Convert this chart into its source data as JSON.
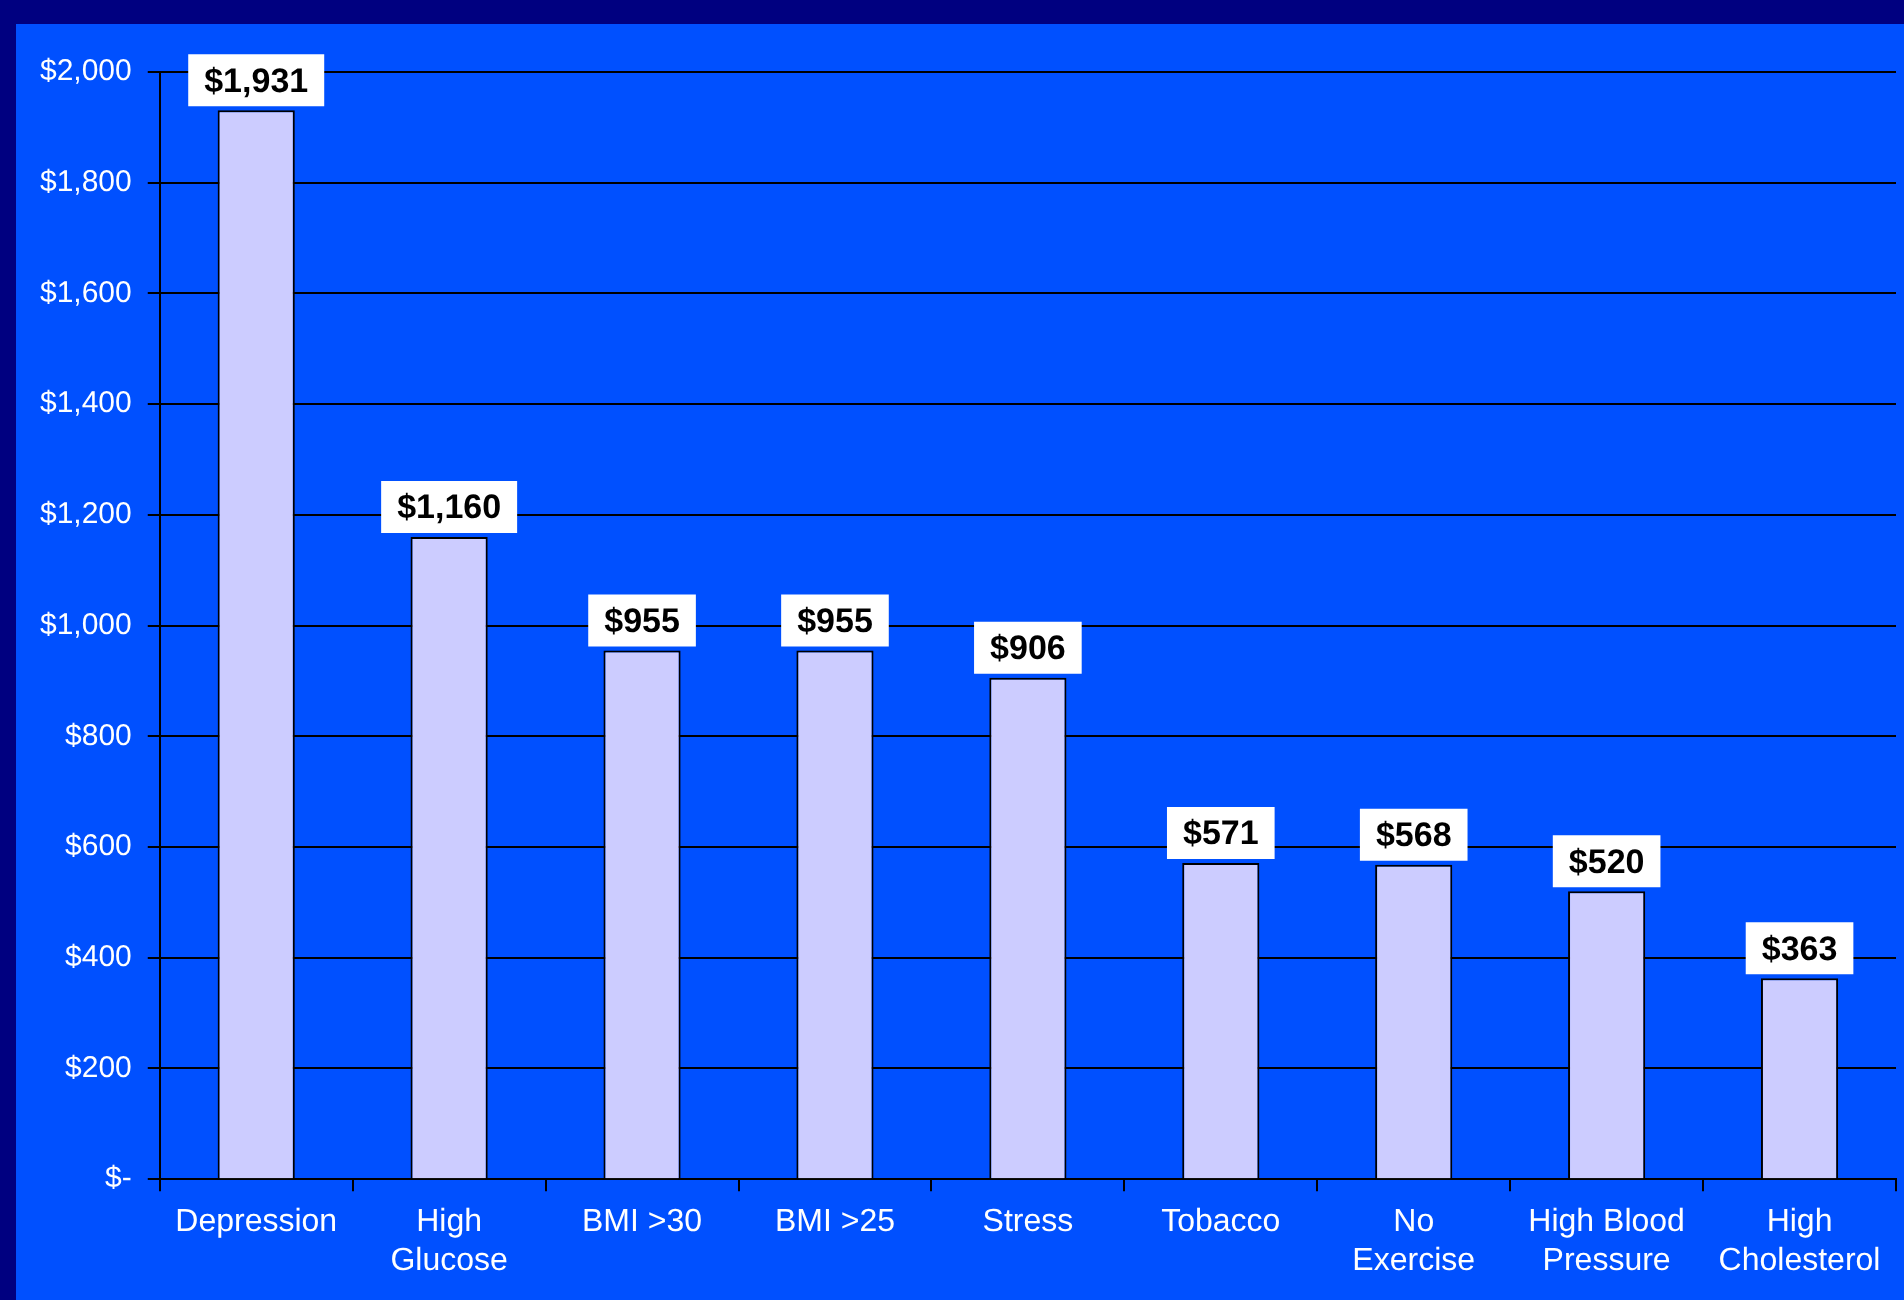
{
  "chart_data": {
    "type": "bar",
    "categories": [
      "Depression",
      "High Glucose",
      "BMI >30",
      "BMI >25",
      "Stress",
      "Tobacco",
      "No Exercise",
      "High Blood Pressure",
      "High Cholesterol"
    ],
    "values": [
      1931,
      1160,
      955,
      955,
      906,
      571,
      568,
      520,
      363
    ],
    "value_labels": [
      "$1,931",
      "$1,160",
      "$955",
      "$955",
      "$906",
      "$571",
      "$568",
      "$520",
      "$363"
    ],
    "color": "#ccccff",
    "ylim": [
      0,
      2000
    ],
    "yticks": [
      {
        "value": 0,
        "label": "$-"
      },
      {
        "value": 200,
        "label": "$200"
      },
      {
        "value": 400,
        "label": "$400"
      },
      {
        "value": 600,
        "label": "$600"
      },
      {
        "value": 800,
        "label": "$800"
      },
      {
        "value": 1000,
        "label": "$1,000"
      },
      {
        "value": 1200,
        "label": "$1,200"
      },
      {
        "value": 1400,
        "label": "$1,400"
      },
      {
        "value": 1600,
        "label": "$1,600"
      },
      {
        "value": 1800,
        "label": "$1,800"
      },
      {
        "value": 2000,
        "label": "$2,000"
      }
    ],
    "grid": "y"
  }
}
